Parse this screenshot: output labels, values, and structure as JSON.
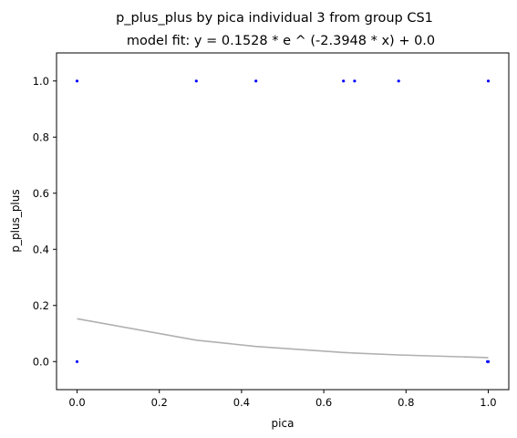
{
  "chart_data": {
    "type": "scatter",
    "title": "p_plus_plus by pica individual 3 from group CS1",
    "subtitle": "model fit: y = 0.1528 * e ^ (-2.3948 * x) + 0.0",
    "xlabel": "pica",
    "ylabel": "p_plus_plus",
    "xlim": [
      -0.05,
      1.05
    ],
    "ylim": [
      -0.1,
      1.1
    ],
    "xticks": [
      "0.0",
      "0.2",
      "0.4",
      "0.6",
      "0.8",
      "1.0"
    ],
    "yticks": [
      "0.0",
      "0.2",
      "0.4",
      "0.6",
      "0.8",
      "1.0"
    ],
    "grid": false,
    "series": [
      {
        "type": "scatter",
        "color": "#0000ff",
        "points": [
          {
            "x": 0.0,
            "y": 1.0
          },
          {
            "x": 0.29,
            "y": 1.0
          },
          {
            "x": 0.435,
            "y": 1.0
          },
          {
            "x": 0.648,
            "y": 1.0
          },
          {
            "x": 0.675,
            "y": 1.0
          },
          {
            "x": 0.782,
            "y": 1.0
          },
          {
            "x": 1.0,
            "y": 1.0
          },
          {
            "x": 0.0,
            "y": 0.0
          },
          {
            "x": 0.998,
            "y": 0.0
          },
          {
            "x": 1.0,
            "y": 0.0
          }
        ]
      },
      {
        "type": "line",
        "color": "#b0b0b0",
        "points": [
          {
            "x": 0.0,
            "y": 0.1528
          },
          {
            "x": 0.29,
            "y": 0.0762
          },
          {
            "x": 0.435,
            "y": 0.0539
          },
          {
            "x": 0.648,
            "y": 0.0324
          },
          {
            "x": 0.675,
            "y": 0.0304
          },
          {
            "x": 0.782,
            "y": 0.0235
          },
          {
            "x": 1.0,
            "y": 0.014
          }
        ]
      }
    ]
  }
}
